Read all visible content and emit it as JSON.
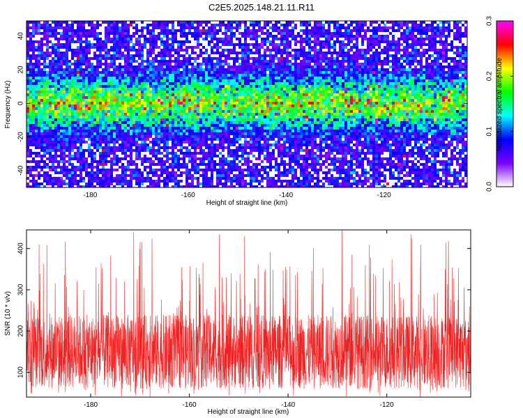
{
  "title": "C2E5.2025.148.21.11.R11",
  "chart_data": [
    {
      "type": "heatmap",
      "xlabel": "Height of straight line (km)",
      "ylabel": "Frequency (Hz)",
      "xlim": [
        -193,
        -103
      ],
      "ylim": [
        -50,
        49
      ],
      "xticks": [
        -180,
        -160,
        -140,
        -120
      ],
      "yticks": [
        -40,
        -20,
        0,
        20,
        40
      ],
      "xtick_labels": [
        "-180",
        "-160",
        "-140",
        "-120"
      ],
      "ytick_labels": [
        "-40",
        "-20",
        "0",
        "20",
        "40"
      ],
      "band_center_hz": 0,
      "band_halfwidth_hz": 14,
      "colorbar": {
        "label": "Normalized spectral amplitude",
        "range": [
          0,
          0.3
        ],
        "ticks": [
          0,
          0.1,
          0.2,
          0.3
        ],
        "tick_labels": [
          "0.0",
          "0.1",
          "0.2",
          "0.3"
        ],
        "colors": [
          "#ffffff",
          "#7a00ff",
          "#0000ff",
          "#00ffff",
          "#00ff00",
          "#ffff00",
          "#ff0000",
          "#ff00ff"
        ]
      }
    },
    {
      "type": "line",
      "xlabel": "Height of straight line (km)",
      "ylabel": "SNR (10 * v/v)",
      "xlim": [
        -193,
        -103
      ],
      "ylim": [
        40,
        445
      ],
      "xticks": [
        -180,
        -160,
        -140,
        -120
      ],
      "yticks": [
        100,
        200,
        300,
        400
      ],
      "xtick_labels": [
        "-180",
        "-160",
        "-140",
        "-120"
      ],
      "ytick_labels": [
        "100",
        "200",
        "300",
        "400"
      ],
      "line_color": "#ee2222",
      "typical_range": [
        60,
        240
      ],
      "mean": 130,
      "max": 445,
      "min": 40
    }
  ]
}
